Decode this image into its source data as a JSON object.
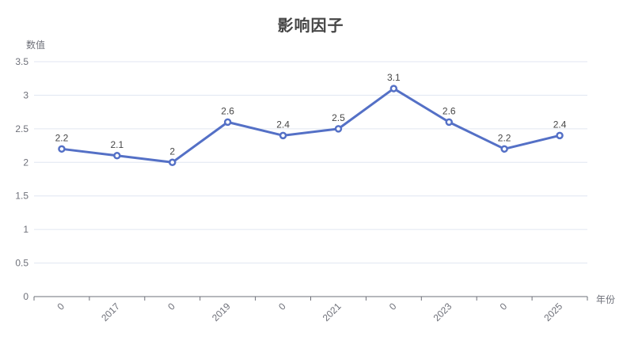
{
  "chart_data": {
    "type": "line",
    "title": "影响因子",
    "xlabel": "年份",
    "ylabel": "数值",
    "categories": [
      "0",
      "2017",
      "0",
      "2019",
      "0",
      "2021",
      "0",
      "2023",
      "0",
      "2025"
    ],
    "series": [
      {
        "name": "影响因子",
        "values": [
          2.2,
          2.1,
          2,
          2.6,
          2.4,
          2.5,
          3.1,
          2.6,
          2.2,
          2.4
        ]
      }
    ],
    "point_labels": [
      "2.2",
      "2.1",
      "2",
      "2.6",
      "2.4",
      "2.5",
      "3.1",
      "2.6",
      "2.2",
      "2.4"
    ],
    "ylim": [
      0,
      3.5
    ],
    "y_ticks": [
      "0",
      "0.5",
      "1",
      "1.5",
      "2",
      "2.5",
      "3",
      "3.5"
    ],
    "grid": true,
    "legend": "none",
    "x_label_rotation": -45,
    "colors": {
      "line": "#5470c6",
      "marker_fill": "#ffffff",
      "title_text": "#464646",
      "data_label": "#464646",
      "axis_label": "#6E7079",
      "axis_line": "#6E7079",
      "grid_line": "#E0E6F1",
      "background": "#ffffff"
    }
  }
}
